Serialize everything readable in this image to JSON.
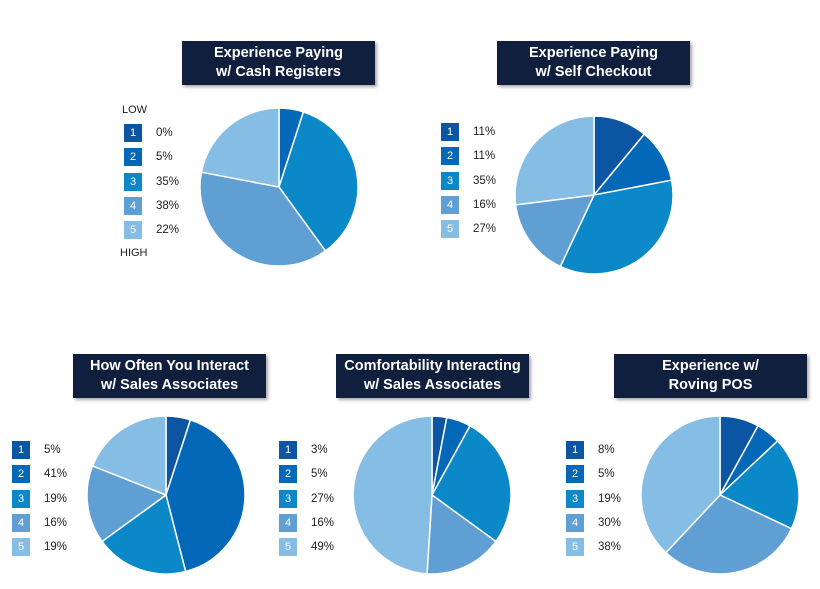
{
  "scale": {
    "low_label": "LOW",
    "high_label": "HIGH"
  },
  "colors": [
    "#0b55a3",
    "#0468b8",
    "#0a88c8",
    "#5f9fd3",
    "#86bde4"
  ],
  "chart_data": [
    {
      "type": "pie",
      "title_line1": "Experience Paying",
      "title_line2": "w/ Cash Registers",
      "categories": [
        "1",
        "2",
        "3",
        "4",
        "5"
      ],
      "labels": [
        "0%",
        "5%",
        "35%",
        "38%",
        "22%"
      ],
      "values": [
        0,
        5,
        35,
        38,
        22
      ]
    },
    {
      "type": "pie",
      "title_line1": "Experience Paying",
      "title_line2": "w/ Self Checkout",
      "categories": [
        "1",
        "2",
        "3",
        "4",
        "5"
      ],
      "labels": [
        "11%",
        "11%",
        "35%",
        "16%",
        "27%"
      ],
      "values": [
        11,
        11,
        35,
        16,
        27
      ]
    },
    {
      "type": "pie",
      "title_line1": "How Often You Interact",
      "title_line2": "w/ Sales Associates",
      "categories": [
        "1",
        "2",
        "3",
        "4",
        "5"
      ],
      "labels": [
        "5%",
        "41%",
        "19%",
        "16%",
        "19%"
      ],
      "values": [
        5,
        41,
        19,
        16,
        19
      ]
    },
    {
      "type": "pie",
      "title_line1": "Comfortability Interacting",
      "title_line2": "w/ Sales Associates",
      "categories": [
        "1",
        "2",
        "3",
        "4",
        "5"
      ],
      "labels": [
        "3%",
        "5%",
        "27%",
        "16%",
        "49%"
      ],
      "values": [
        3,
        5,
        27,
        16,
        49
      ]
    },
    {
      "type": "pie",
      "title_line1": "Experience w/",
      "title_line2": "Roving POS",
      "categories": [
        "1",
        "2",
        "3",
        "4",
        "5"
      ],
      "labels": [
        "8%",
        "5%",
        "19%",
        "30%",
        "38%"
      ],
      "values": [
        8,
        5,
        19,
        30,
        38
      ]
    }
  ]
}
